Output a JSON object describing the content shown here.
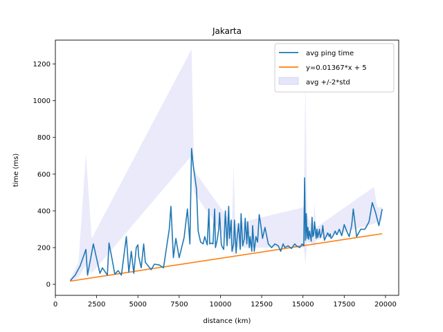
{
  "chart_data": {
    "type": "line",
    "title": "Jakarta",
    "xlabel": "distance (km)",
    "ylabel": "time (ms)",
    "xlim": [
      0,
      20800
    ],
    "ylim": [
      -60,
      1330
    ],
    "xticks": [
      0,
      2500,
      5000,
      7500,
      10000,
      12500,
      15000,
      17500,
      20000
    ],
    "yticks": [
      0,
      200,
      400,
      600,
      800,
      1000,
      1200
    ],
    "grid": false,
    "legend_position": "top-right",
    "colors": {
      "avg": "#1f77b4",
      "fit": "#ff7f0e",
      "band": "#e6e6fa"
    },
    "series": [
      {
        "name": "avg ping time",
        "kind": "line",
        "x": [
          900,
          1200,
          1500,
          1850,
          1950,
          2300,
          2700,
          2850,
          3150,
          3250,
          3450,
          3600,
          3800,
          4000,
          4100,
          4300,
          4450,
          4600,
          4750,
          4900,
          5000,
          5050,
          5200,
          5350,
          5450,
          5800,
          6000,
          6300,
          6550,
          6900,
          7000,
          7150,
          7300,
          7500,
          7650,
          7800,
          8000,
          8150,
          8250,
          8350,
          8550,
          8650,
          8800,
          8950,
          9050,
          9200,
          9300,
          9350,
          9450,
          9550,
          9650,
          9700,
          9800,
          9900,
          9950,
          10050,
          10100,
          10200,
          10300,
          10400,
          10500,
          10550,
          10650,
          10700,
          10800,
          10850,
          10950,
          11000,
          11100,
          11200,
          11250,
          11350,
          11450,
          11500,
          11600,
          11650,
          11750,
          11800,
          11900,
          11950,
          12050,
          12150,
          12250,
          12350,
          12450,
          12550,
          12700,
          12900,
          13100,
          13300,
          13500,
          13650,
          13800,
          13900,
          14100,
          14300,
          14500,
          14600,
          14800,
          14950,
          15050,
          15100,
          15150,
          15200,
          15250,
          15300,
          15350,
          15400,
          15500,
          15550,
          15600,
          15650,
          15700,
          15800,
          15850,
          15900,
          16000,
          16050,
          16150,
          16200,
          16300,
          16400,
          16500,
          16600,
          16650,
          16700,
          16800,
          16950,
          17050,
          17200,
          17350,
          17500,
          17650,
          17800,
          17950,
          18050,
          18250,
          18500,
          18750,
          19000,
          19200,
          19400,
          19600,
          19800
        ],
        "y": [
          20,
          50,
          100,
          190,
          50,
          220,
          60,
          90,
          50,
          225,
          130,
          55,
          75,
          50,
          120,
          260,
          65,
          180,
          60,
          200,
          215,
          150,
          90,
          220,
          120,
          80,
          110,
          105,
          90,
          300,
          425,
          145,
          250,
          145,
          200,
          255,
          410,
          220,
          740,
          650,
          520,
          290,
          230,
          220,
          260,
          215,
          410,
          220,
          225,
          220,
          410,
          200,
          240,
          300,
          390,
          220,
          205,
          190,
          400,
          210,
          425,
          250,
          350,
          180,
          220,
          350,
          170,
          240,
          330,
          190,
          385,
          210,
          250,
          360,
          220,
          340,
          200,
          260,
          180,
          320,
          180,
          260,
          230,
          380,
          320,
          250,
          310,
          220,
          200,
          220,
          210,
          180,
          220,
          200,
          210,
          195,
          220,
          210,
          200,
          220,
          210,
          580,
          240,
          385,
          250,
          310,
          245,
          290,
          235,
          365,
          260,
          270,
          340,
          250,
          300,
          255,
          300,
          255,
          280,
          320,
          240,
          260,
          280,
          260,
          275,
          250,
          260,
          290,
          270,
          300,
          265,
          325,
          290,
          260,
          320,
          410,
          260,
          300,
          300,
          340,
          445,
          390,
          320,
          410
        ]
      },
      {
        "name": "y=0.01367*x + 5",
        "kind": "line",
        "x": [
          900,
          19800
        ],
        "y": [
          17.3,
          275.7
        ]
      },
      {
        "name": "avg +/-2*std",
        "kind": "band",
        "x": [
          900,
          1400,
          1850,
          2200,
          8250,
          8400,
          10700,
          10800,
          10900,
          15050,
          15150,
          15250,
          15600,
          15700,
          15800,
          19300,
          19500,
          19800
        ],
        "upper": [
          30,
          120,
          710,
          250,
          1280,
          620,
          330,
          650,
          330,
          420,
          1110,
          380,
          300,
          440,
          310,
          530,
          420,
          420
        ],
        "lower": [
          10,
          40,
          100,
          60,
          700,
          500,
          200,
          150,
          200,
          200,
          110,
          230,
          220,
          200,
          240,
          330,
          340,
          350
        ]
      }
    ]
  }
}
